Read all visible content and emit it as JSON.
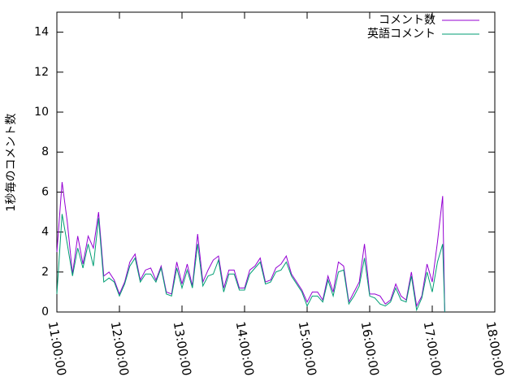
{
  "chart_data": {
    "type": "line",
    "ylabel": "1秒毎のコメント数",
    "x": [
      "11:00:00",
      "11:05:00",
      "11:10:00",
      "11:15:00",
      "11:20:00",
      "11:25:00",
      "11:30:00",
      "11:35:00",
      "11:40:00",
      "11:45:00",
      "11:50:00",
      "11:55:00",
      "12:00:00",
      "12:05:00",
      "12:10:00",
      "12:15:00",
      "12:20:00",
      "12:25:00",
      "12:30:00",
      "12:35:00",
      "12:40:00",
      "12:45:00",
      "12:50:00",
      "12:55:00",
      "13:00:00",
      "13:05:00",
      "13:10:00",
      "13:15:00",
      "13:20:00",
      "13:25:00",
      "13:30:00",
      "13:35:00",
      "13:40:00",
      "13:45:00",
      "13:50:00",
      "13:55:00",
      "14:00:00",
      "14:05:00",
      "14:10:00",
      "14:15:00",
      "14:20:00",
      "14:25:00",
      "14:30:00",
      "14:35:00",
      "14:40:00",
      "14:45:00",
      "14:50:00",
      "14:55:00",
      "15:00:00",
      "15:05:00",
      "15:10:00",
      "15:15:00",
      "15:20:00",
      "15:25:00",
      "15:30:00",
      "15:35:00",
      "15:40:00",
      "15:45:00",
      "15:50:00",
      "15:55:00",
      "16:00:00",
      "16:05:00",
      "16:10:00",
      "16:15:00",
      "16:20:00",
      "16:25:00",
      "16:30:00",
      "16:35:00",
      "16:40:00",
      "16:45:00",
      "16:50:00",
      "16:55:00",
      "17:00:00",
      "17:05:00",
      "17:10:00",
      "17:12:00"
    ],
    "series": [
      {
        "name": "コメント数",
        "color": "#9400d3",
        "values": [
          3.0,
          6.5,
          4.5,
          1.9,
          3.8,
          2.4,
          3.8,
          3.2,
          5.0,
          1.8,
          2.0,
          1.6,
          0.9,
          1.5,
          2.5,
          2.9,
          1.6,
          2.1,
          2.2,
          1.6,
          2.3,
          1.0,
          0.9,
          2.5,
          1.4,
          2.4,
          1.3,
          3.9,
          1.5,
          2.1,
          2.6,
          2.8,
          1.2,
          2.1,
          2.1,
          1.2,
          1.2,
          2.1,
          2.3,
          2.7,
          1.5,
          1.6,
          2.2,
          2.4,
          2.8,
          1.9,
          1.5,
          1.1,
          0.5,
          1.0,
          1.0,
          0.6,
          1.8,
          1.0,
          2.5,
          2.3,
          0.5,
          1.0,
          1.5,
          3.4,
          0.9,
          0.9,
          0.8,
          0.4,
          0.6,
          1.4,
          0.8,
          0.6,
          2.0,
          0.3,
          0.8,
          2.4,
          1.5,
          3.5,
          5.8,
          0
        ]
      },
      {
        "name": "英語コメント",
        "color": "#009e73",
        "values": [
          0.9,
          4.9,
          3.4,
          1.8,
          3.2,
          2.2,
          3.4,
          2.3,
          4.7,
          1.5,
          1.7,
          1.5,
          0.8,
          1.4,
          2.3,
          2.7,
          1.5,
          1.9,
          1.9,
          1.5,
          2.2,
          0.9,
          0.8,
          2.2,
          1.2,
          2.1,
          1.2,
          3.4,
          1.3,
          1.8,
          1.9,
          2.6,
          1.0,
          1.9,
          1.9,
          1.1,
          1.1,
          1.9,
          2.2,
          2.5,
          1.4,
          1.5,
          2.0,
          2.1,
          2.5,
          1.8,
          1.4,
          1.0,
          0.3,
          0.8,
          0.8,
          0.5,
          1.6,
          0.8,
          2.0,
          2.1,
          0.4,
          0.8,
          1.3,
          2.7,
          0.8,
          0.7,
          0.4,
          0.3,
          0.5,
          1.2,
          0.6,
          0.5,
          1.8,
          0.1,
          0.7,
          2.0,
          1.0,
          2.5,
          3.4,
          0
        ]
      }
    ],
    "xlim": [
      "11:00:00",
      "18:00:00"
    ],
    "xticks": [
      "11:00:00",
      "12:00:00",
      "13:00:00",
      "14:00:00",
      "15:00:00",
      "16:00:00",
      "17:00:00",
      "18:00:00"
    ],
    "ylim": [
      0,
      15
    ],
    "yticks": [
      0,
      2,
      4,
      6,
      8,
      10,
      12,
      14
    ],
    "legend": "top-right"
  }
}
